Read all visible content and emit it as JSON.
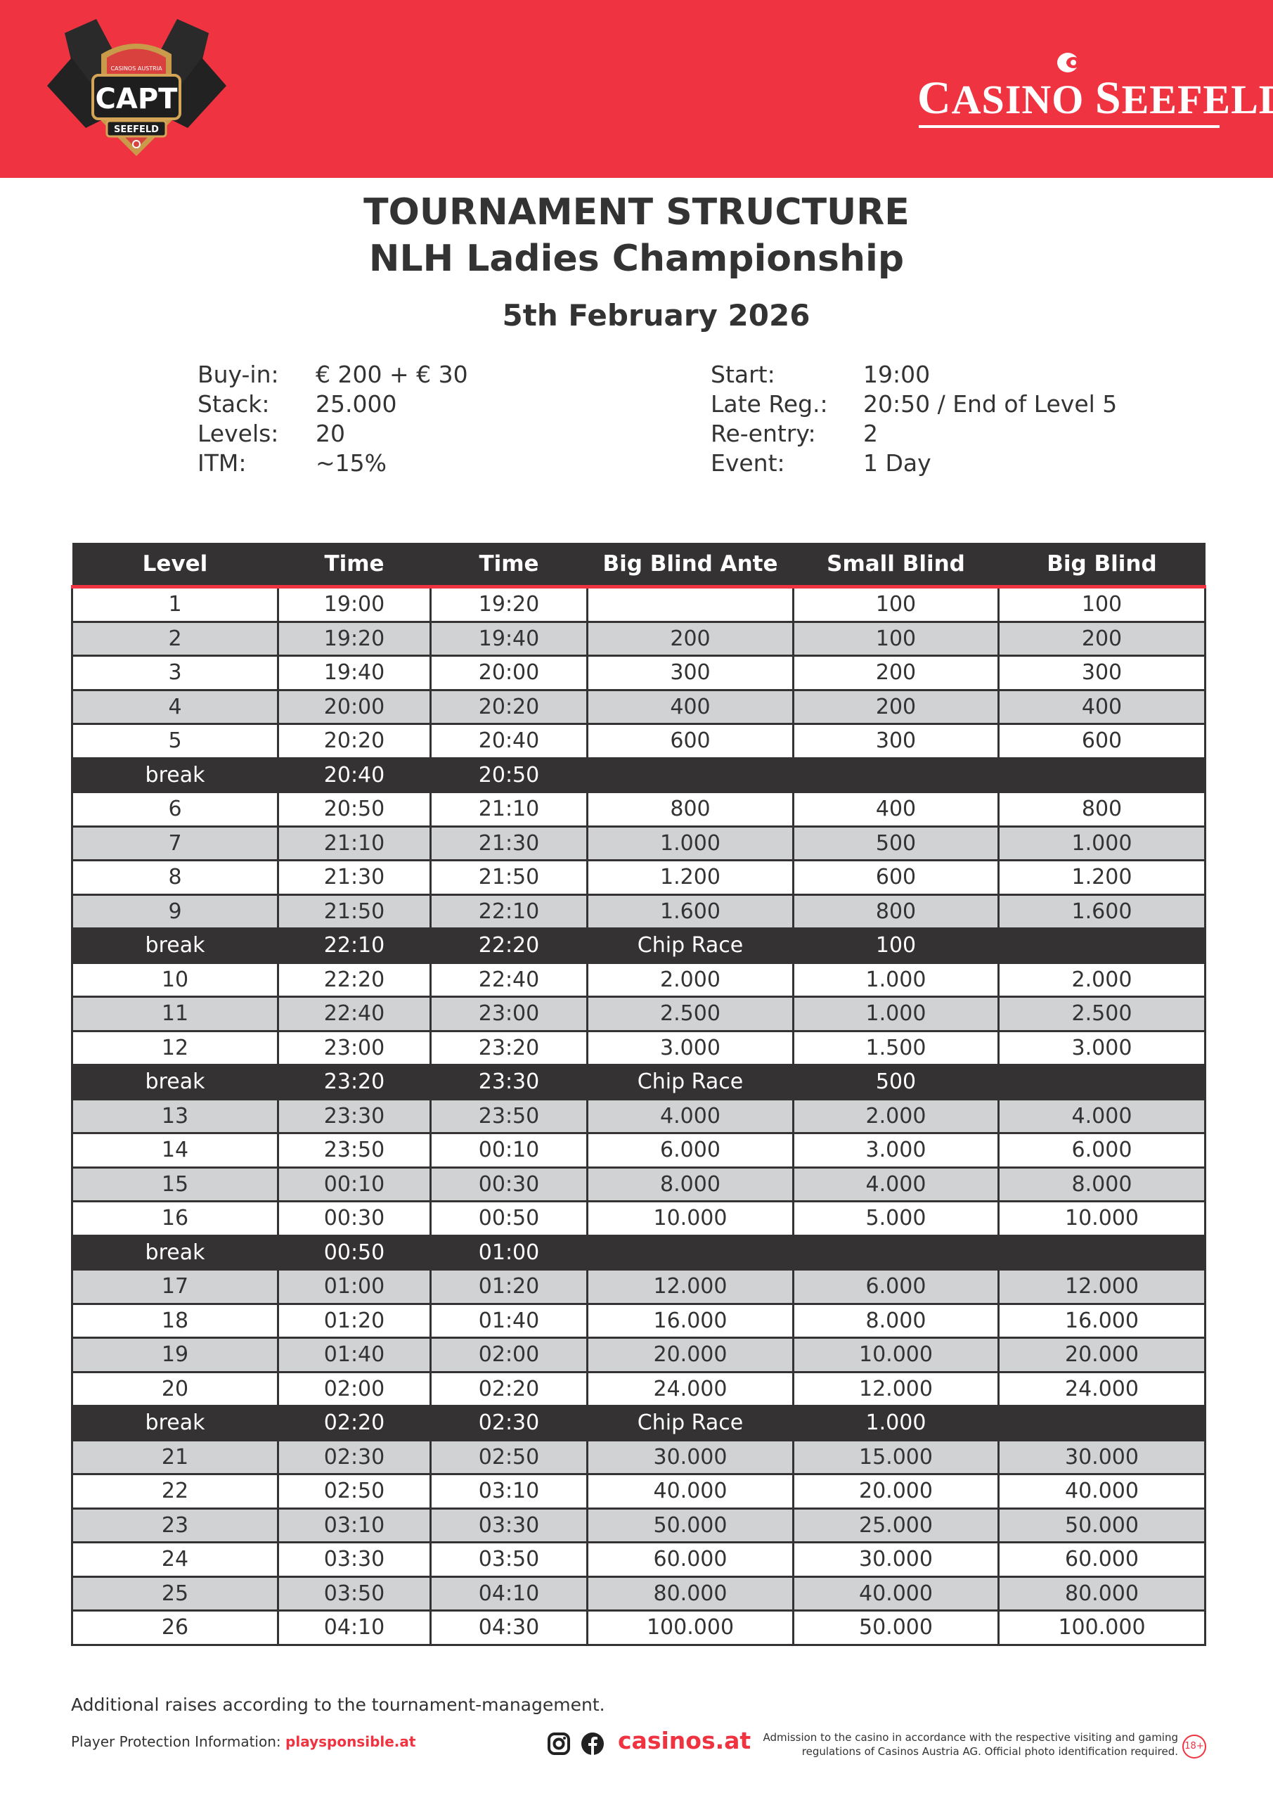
{
  "header": {
    "logo_left": {
      "text": "CAPT",
      "sub": "SEEFELD",
      "top": "CASINOS AUSTRIA"
    },
    "logo_right": {
      "text": "CASINO SEEFELD"
    },
    "colors": {
      "brand_red": "#EF3340",
      "dark": "#343233",
      "row_gray": "#D1D2D4"
    }
  },
  "title": {
    "line1": "TOURNAMENT STRUCTURE",
    "line2": "NLH Ladies Championship",
    "date": "5th February 2026"
  },
  "info_left": [
    {
      "label": "Buy-in:",
      "value": "€ 200 + € 30"
    },
    {
      "label": "Stack:",
      "value": "25.000"
    },
    {
      "label": "Levels:",
      "value": "20"
    },
    {
      "label": "ITM:",
      "value": "~15%"
    }
  ],
  "info_right": [
    {
      "label": "Start:",
      "value": "19:00"
    },
    {
      "label": "Late Reg.:",
      "value": "20:50 / End of Level 5"
    },
    {
      "label": "Re-entry:",
      "value": "2"
    },
    {
      "label": "Event:",
      "value": "1 Day"
    }
  ],
  "table": {
    "columns": [
      "Level",
      "Time",
      "Time",
      "Big Blind Ante",
      "Small Blind",
      "Big Blind"
    ],
    "rows": [
      {
        "type": "level",
        "shaded": false,
        "cells": [
          "1",
          "19:00",
          "19:20",
          "",
          "100",
          "100"
        ]
      },
      {
        "type": "level",
        "shaded": true,
        "cells": [
          "2",
          "19:20",
          "19:40",
          "200",
          "100",
          "200"
        ]
      },
      {
        "type": "level",
        "shaded": false,
        "cells": [
          "3",
          "19:40",
          "20:00",
          "300",
          "200",
          "300"
        ]
      },
      {
        "type": "level",
        "shaded": true,
        "cells": [
          "4",
          "20:00",
          "20:20",
          "400",
          "200",
          "400"
        ]
      },
      {
        "type": "level",
        "shaded": false,
        "cells": [
          "5",
          "20:20",
          "20:40",
          "600",
          "300",
          "600"
        ]
      },
      {
        "type": "break",
        "cells": [
          "break",
          "20:40",
          "20:50",
          "",
          "",
          ""
        ]
      },
      {
        "type": "level",
        "shaded": false,
        "cells": [
          "6",
          "20:50",
          "21:10",
          "800",
          "400",
          "800"
        ]
      },
      {
        "type": "level",
        "shaded": true,
        "cells": [
          "7",
          "21:10",
          "21:30",
          "1.000",
          "500",
          "1.000"
        ]
      },
      {
        "type": "level",
        "shaded": false,
        "cells": [
          "8",
          "21:30",
          "21:50",
          "1.200",
          "600",
          "1.200"
        ]
      },
      {
        "type": "level",
        "shaded": true,
        "cells": [
          "9",
          "21:50",
          "22:10",
          "1.600",
          "800",
          "1.600"
        ]
      },
      {
        "type": "break",
        "cells": [
          "break",
          "22:10",
          "22:20",
          "Chip Race",
          "100",
          ""
        ]
      },
      {
        "type": "level",
        "shaded": false,
        "cells": [
          "10",
          "22:20",
          "22:40",
          "2.000",
          "1.000",
          "2.000"
        ]
      },
      {
        "type": "level",
        "shaded": true,
        "cells": [
          "11",
          "22:40",
          "23:00",
          "2.500",
          "1.000",
          "2.500"
        ]
      },
      {
        "type": "level",
        "shaded": false,
        "cells": [
          "12",
          "23:00",
          "23:20",
          "3.000",
          "1.500",
          "3.000"
        ]
      },
      {
        "type": "break",
        "cells": [
          "break",
          "23:20",
          "23:30",
          "Chip Race",
          "500",
          ""
        ]
      },
      {
        "type": "level",
        "shaded": true,
        "cells": [
          "13",
          "23:30",
          "23:50",
          "4.000",
          "2.000",
          "4.000"
        ]
      },
      {
        "type": "level",
        "shaded": false,
        "cells": [
          "14",
          "23:50",
          "00:10",
          "6.000",
          "3.000",
          "6.000"
        ]
      },
      {
        "type": "level",
        "shaded": true,
        "cells": [
          "15",
          "00:10",
          "00:30",
          "8.000",
          "4.000",
          "8.000"
        ]
      },
      {
        "type": "level",
        "shaded": false,
        "cells": [
          "16",
          "00:30",
          "00:50",
          "10.000",
          "5.000",
          "10.000"
        ]
      },
      {
        "type": "break",
        "cells": [
          "break",
          "00:50",
          "01:00",
          "",
          "",
          ""
        ]
      },
      {
        "type": "level",
        "shaded": true,
        "cells": [
          "17",
          "01:00",
          "01:20",
          "12.000",
          "6.000",
          "12.000"
        ]
      },
      {
        "type": "level",
        "shaded": false,
        "cells": [
          "18",
          "01:20",
          "01:40",
          "16.000",
          "8.000",
          "16.000"
        ]
      },
      {
        "type": "level",
        "shaded": true,
        "cells": [
          "19",
          "01:40",
          "02:00",
          "20.000",
          "10.000",
          "20.000"
        ]
      },
      {
        "type": "level",
        "shaded": false,
        "cells": [
          "20",
          "02:00",
          "02:20",
          "24.000",
          "12.000",
          "24.000"
        ]
      },
      {
        "type": "break",
        "cells": [
          "break",
          "02:20",
          "02:30",
          "Chip Race",
          "1.000",
          ""
        ]
      },
      {
        "type": "level",
        "shaded": true,
        "cells": [
          "21",
          "02:30",
          "02:50",
          "30.000",
          "15.000",
          "30.000"
        ]
      },
      {
        "type": "level",
        "shaded": false,
        "cells": [
          "22",
          "02:50",
          "03:10",
          "40.000",
          "20.000",
          "40.000"
        ]
      },
      {
        "type": "level",
        "shaded": true,
        "cells": [
          "23",
          "03:10",
          "03:30",
          "50.000",
          "25.000",
          "50.000"
        ]
      },
      {
        "type": "level",
        "shaded": false,
        "cells": [
          "24",
          "03:30",
          "03:50",
          "60.000",
          "30.000",
          "60.000"
        ]
      },
      {
        "type": "level",
        "shaded": true,
        "cells": [
          "25",
          "03:50",
          "04:10",
          "80.000",
          "40.000",
          "80.000"
        ]
      },
      {
        "type": "level",
        "shaded": false,
        "cells": [
          "26",
          "04:10",
          "04:30",
          "100.000",
          "50.000",
          "100.000"
        ]
      }
    ]
  },
  "footer": {
    "note": "Additional raises according to the tournament-management.",
    "protection_label": "Player Protection Information:",
    "protection_link": "playsponsible.at",
    "social_icons": [
      "instagram-icon",
      "facebook-icon"
    ],
    "website": "casinos.at",
    "admission_line1": "Admission to the casino in accordance with the respective visiting and  gaming",
    "admission_line2": "regulations of Casinos Austria AG. Official photo identification required.",
    "age_badge": "18+"
  }
}
